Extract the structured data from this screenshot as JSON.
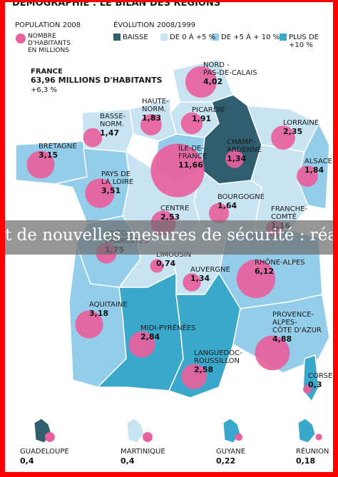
{
  "title": "DÉMOGRAPHIE : LE BILAN DES RÉGIONS",
  "legend": {
    "population_title": "POPULATION 2008",
    "population_label": "NOMBRE\nD'HABITANTS\nEN MILLIONS",
    "evolution_title": "ÉVOLUTION 2008/1999",
    "classes": [
      {
        "label": "BAISSE",
        "color": "#2f5f6f"
      },
      {
        "label": "DE 0 À +5 %",
        "color": "#c8e4f3"
      },
      {
        "label": "DE +5 À + 10 %",
        "color": "#93cdea"
      },
      {
        "label": "PLUS DE +10 %",
        "color": "#3aa8cb"
      }
    ],
    "bubble_color": "#e8609d"
  },
  "france": {
    "name": "FRANCE",
    "population": "63,96 MILLIONS D'HABITANTS",
    "change": "+6,3 %"
  },
  "regions": [
    {
      "name": "NORD -\nPAS-DE-CALAIS",
      "population": 4.02,
      "population_label": "4,02",
      "class": 1
    },
    {
      "name": "PICARDIE",
      "population": 1.91,
      "population_label": "1,91",
      "class": 1
    },
    {
      "name": "HAUTE-\nNORM.",
      "population": 1.83,
      "population_label": "1,83",
      "class": 1
    },
    {
      "name": "BASSE-\nNORM.",
      "population": 1.47,
      "population_label": "1,47",
      "class": 1
    },
    {
      "name": "BRETAGNE",
      "population": 3.15,
      "population_label": "3,15",
      "class": 2
    },
    {
      "name": "PAYS DE\nLA LOIRE",
      "population": 3.51,
      "population_label": "3,51",
      "class": 2
    },
    {
      "name": "ÎLE-DE-\nFRANCE",
      "population": 11.66,
      "population_label": "11,66",
      "class": 2
    },
    {
      "name": "CHAMP.-\nARDENNE",
      "population": 1.34,
      "population_label": "1,34",
      "class": 0
    },
    {
      "name": "LORRAINE",
      "population": 2.35,
      "population_label": "2,35",
      "class": 1
    },
    {
      "name": "ALSACE",
      "population": 1.84,
      "population_label": "1,84",
      "class": 2
    },
    {
      "name": "BOURGOGNE",
      "population": 1.64,
      "population_label": "1,64",
      "class": 1
    },
    {
      "name": "FRANCHE-\nCOMTÉ",
      "population": 1.16,
      "population_label": "1,16",
      "class": 1
    },
    {
      "name": "CENTRE",
      "population": 2.53,
      "population_label": "2,53",
      "class": 1
    },
    {
      "name": "POITOU-\nCHARENTES",
      "population": 1.75,
      "population_label": "1,75",
      "class": 2
    },
    {
      "name": "LIMOUSIN",
      "population": 0.74,
      "population_label": "0,74",
      "class": 1
    },
    {
      "name": "AUVERGNE",
      "population": 1.34,
      "population_label": "1,34",
      "class": 1
    },
    {
      "name": "RHÔNE-ALPES",
      "population": 6.12,
      "population_label": "6,12",
      "class": 2
    },
    {
      "name": "AQUITAINE",
      "population": 3.18,
      "population_label": "3,18",
      "class": 2
    },
    {
      "name": "MIDI-PYRÉNÉES",
      "population": 2.84,
      "population_label": "2,84",
      "class": 3
    },
    {
      "name": "LANGUEDOC-\nROUSSILLON",
      "population": 2.58,
      "population_label": "2,58",
      "class": 3
    },
    {
      "name": "PROVENCE-\nALPES-\nCÔTE D'AZUR",
      "population": 4.88,
      "population_label": "4,88",
      "class": 2
    },
    {
      "name": "CORSE",
      "population": 0.3,
      "population_label": "0,3",
      "class": 3
    }
  ],
  "overseas": [
    {
      "name": "GUADELOUPE",
      "population": 0.4,
      "population_label": "0,4",
      "class": 0
    },
    {
      "name": "MARTINIQUE",
      "population": 0.4,
      "population_label": "0,4",
      "class": 1
    },
    {
      "name": "GUYANE",
      "population": 0.22,
      "population_label": "0,22",
      "class": 3
    },
    {
      "name": "RÉUNION",
      "population": 0.18,
      "population_label": "0,18",
      "class": 3
    }
  ],
  "overlay_text": "t de nouvelles mesures de sécurité : réactions"
}
